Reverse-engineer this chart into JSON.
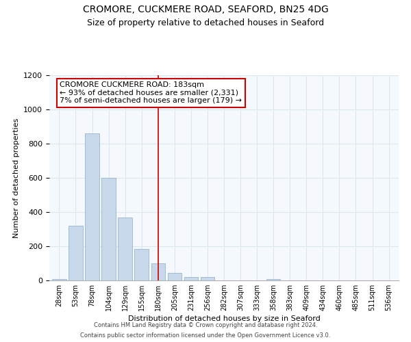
{
  "title": "CROMORE, CUCKMERE ROAD, SEAFORD, BN25 4DG",
  "subtitle": "Size of property relative to detached houses in Seaford",
  "xlabel": "Distribution of detached houses by size in Seaford",
  "ylabel": "Number of detached properties",
  "bin_labels": [
    "28sqm",
    "53sqm",
    "78sqm",
    "104sqm",
    "129sqm",
    "155sqm",
    "180sqm",
    "205sqm",
    "231sqm",
    "256sqm",
    "282sqm",
    "307sqm",
    "333sqm",
    "358sqm",
    "383sqm",
    "409sqm",
    "434sqm",
    "460sqm",
    "485sqm",
    "511sqm",
    "536sqm"
  ],
  "bar_values": [
    10,
    320,
    860,
    600,
    370,
    185,
    100,
    45,
    20,
    20,
    0,
    0,
    0,
    10,
    0,
    0,
    0,
    0,
    0,
    0,
    0
  ],
  "bar_color": "#c8d8eb",
  "bar_edge_color": "#9ab4cc",
  "highlight_bar_index": 6,
  "annotation_box_text": "CROMORE CUCKMERE ROAD: 183sqm\n← 93% of detached houses are smaller (2,331)\n7% of semi-detached houses are larger (179) →",
  "annotation_box_color": "#ffffff",
  "annotation_box_edge_color": "#cc0000",
  "vline_color": "#cc0000",
  "ylim": [
    0,
    1200
  ],
  "yticks": [
    0,
    200,
    400,
    600,
    800,
    1000,
    1200
  ],
  "grid_color": "#dce8f0",
  "background_color": "#f5f8fc",
  "footer_line1": "Contains HM Land Registry data © Crown copyright and database right 2024.",
  "footer_line2": "Contains public sector information licensed under the Open Government Licence v3.0."
}
